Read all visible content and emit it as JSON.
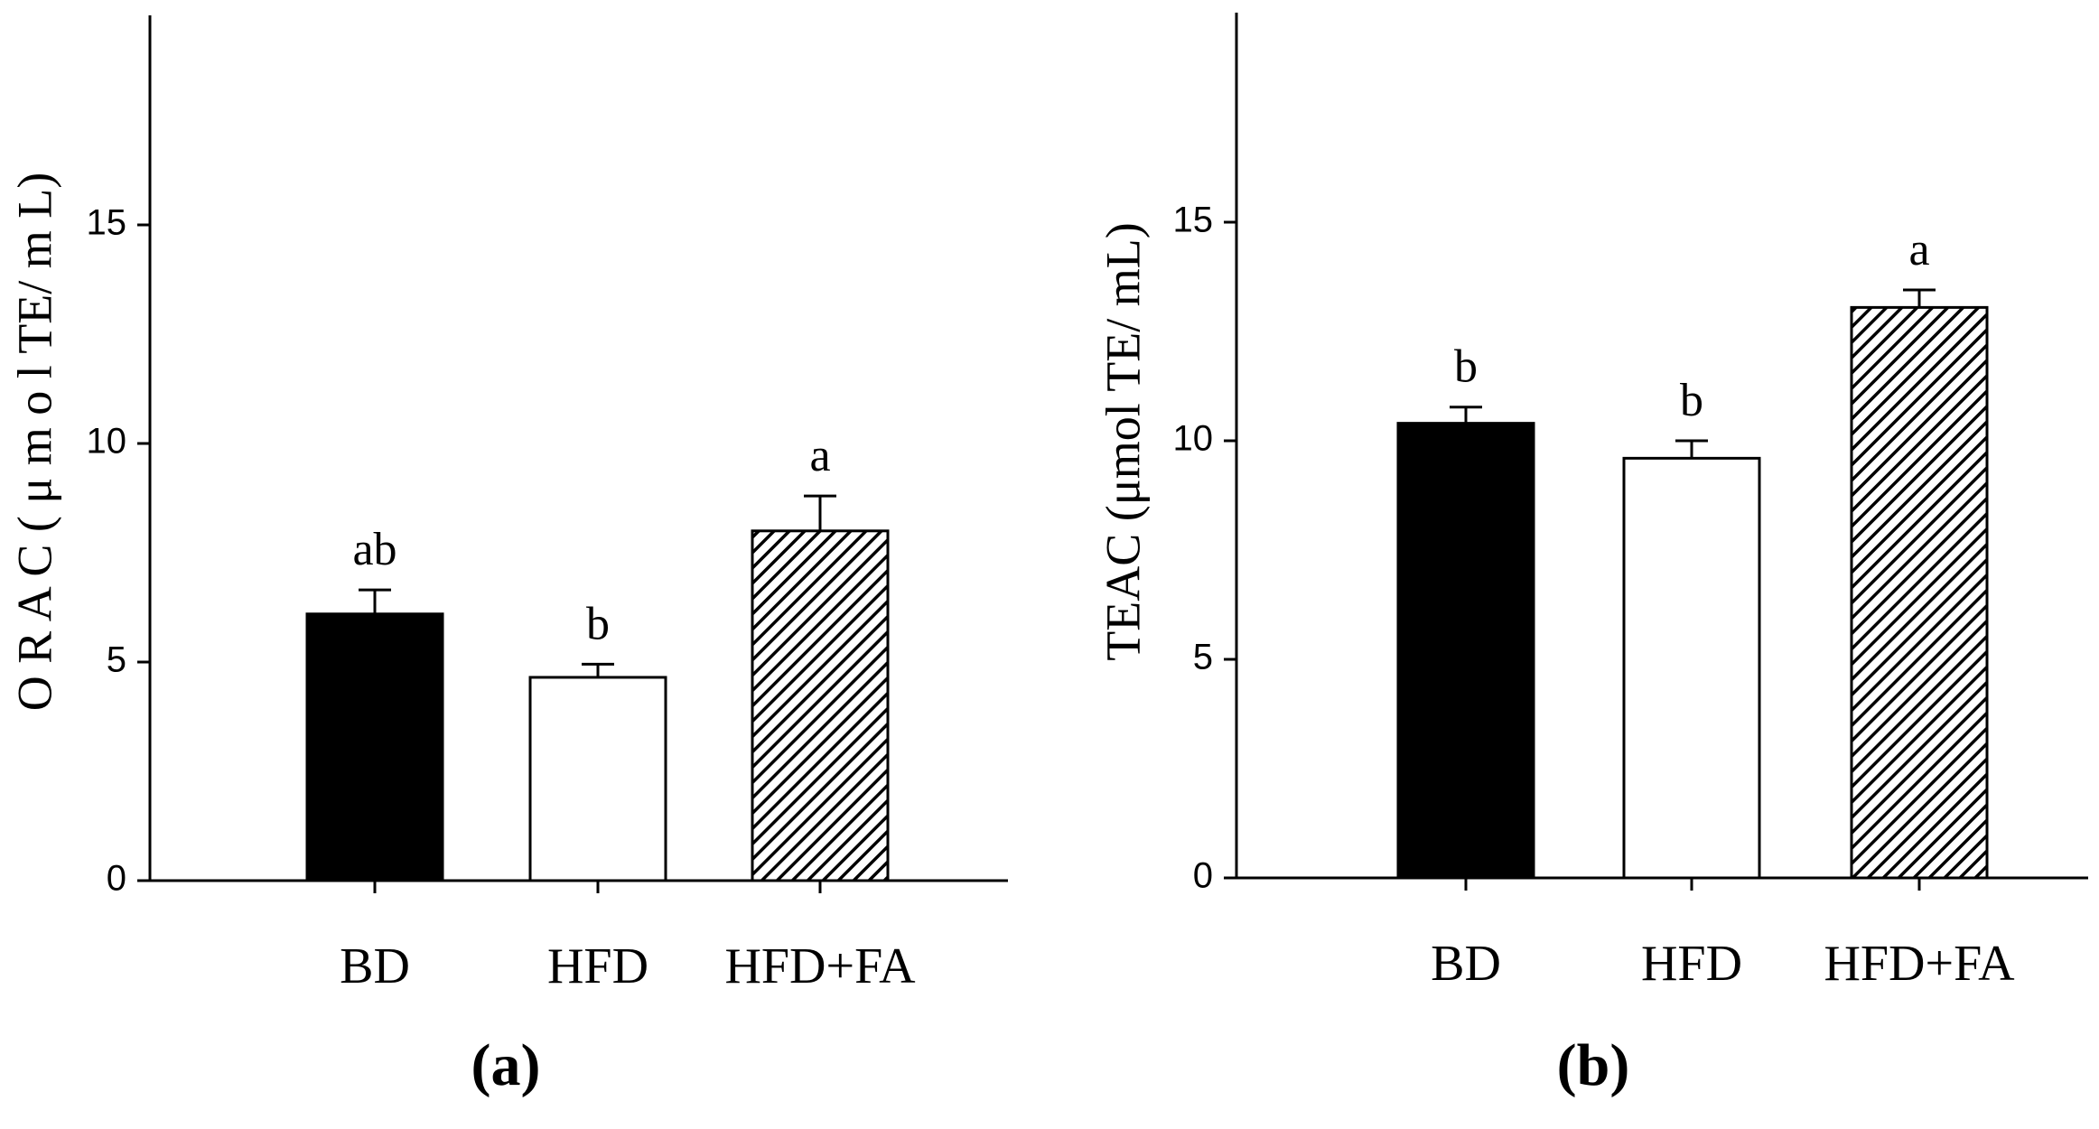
{
  "chart_data": [
    {
      "type": "bar",
      "panel_label": "(a)",
      "y_label": "O R A C  ( μ m o l  TE/ m L)",
      "categories": [
        "BD",
        "HFD",
        "HFD+FA"
      ],
      "values": [
        6.1,
        4.65,
        8.0
      ],
      "errors": [
        0.55,
        0.3,
        0.8
      ],
      "annotations": [
        "ab",
        "b",
        "a"
      ],
      "fills": [
        "#000000",
        "#ffffff",
        "hatch"
      ],
      "ylim": [
        0,
        20
      ],
      "yticks": [
        0,
        5,
        10,
        15
      ]
    },
    {
      "type": "bar",
      "panel_label": "(b)",
      "y_label": "TEAC (μmol TE/ mL)",
      "categories": [
        "BD",
        "HFD",
        "HFD+FA"
      ],
      "values": [
        10.4,
        9.6,
        13.05
      ],
      "errors": [
        0.37,
        0.4,
        0.4
      ],
      "annotations": [
        "b",
        "b",
        "a"
      ],
      "fills": [
        "#000000",
        "#ffffff",
        "hatch"
      ],
      "ylim": [
        0,
        20
      ],
      "yticks": [
        0,
        5,
        10,
        15
      ]
    }
  ]
}
